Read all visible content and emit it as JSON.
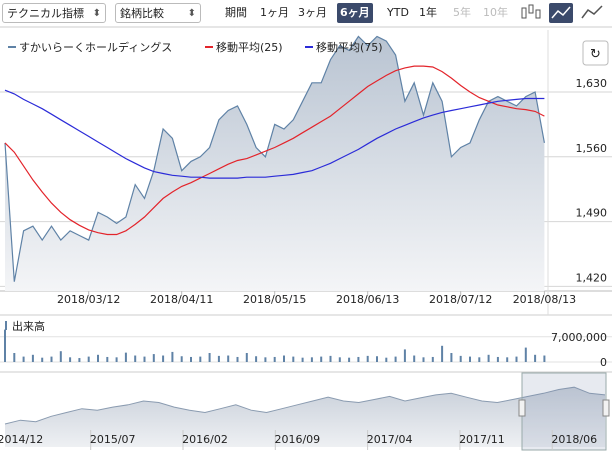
{
  "toolbar": {
    "dropdowns": [
      "テクニカル指標",
      "銘柄比較"
    ],
    "period_label": "期間",
    "periods": [
      "1ヶ月",
      "3ヶ月",
      "6ヶ月",
      "YTD",
      "1年",
      "5年",
      "10年"
    ],
    "selected_period": 2,
    "disabled_periods": [
      5,
      6
    ]
  },
  "chart_data": [
    {
      "type": "line",
      "categories": [
        null,
        null,
        null,
        null,
        null,
        null,
        null,
        null,
        null,
        "2018/03/12",
        null,
        null,
        null,
        null,
        null,
        null,
        null,
        null,
        null,
        "2018/04/11",
        null,
        null,
        null,
        null,
        null,
        null,
        null,
        null,
        null,
        "2018/05/15",
        null,
        null,
        null,
        null,
        null,
        null,
        null,
        null,
        null,
        "2018/06/13",
        null,
        null,
        null,
        null,
        null,
        null,
        null,
        null,
        null,
        "2018/07/12",
        null,
        null,
        null,
        null,
        null,
        null,
        null,
        null,
        "2018/08/13"
      ],
      "series": [
        {
          "name": "すかいらーくホールディングス",
          "color": "#5f82a6",
          "area": true,
          "values": [
            1575,
            1425,
            1480,
            1485,
            1470,
            1485,
            1470,
            1480,
            1475,
            1470,
            1500,
            1495,
            1488,
            1495,
            1530,
            1515,
            1545,
            1590,
            1580,
            1545,
            1555,
            1560,
            1570,
            1600,
            1610,
            1615,
            1595,
            1570,
            1560,
            1595,
            1590,
            1600,
            1620,
            1640,
            1640,
            1665,
            1680,
            1675,
            1690,
            1680,
            1690,
            1685,
            1670,
            1620,
            1640,
            1605,
            1640,
            1620,
            1560,
            1570,
            1575,
            1600,
            1620,
            1625,
            1620,
            1615,
            1625,
            1630,
            1575
          ]
        },
        {
          "name": "移動平均(25)",
          "color": "#e3242b",
          "values": [
            1575,
            1565,
            1550,
            1535,
            1522,
            1510,
            1500,
            1492,
            1486,
            1481,
            1478,
            1476,
            1476,
            1480,
            1487,
            1495,
            1505,
            1515,
            1522,
            1528,
            1532,
            1537,
            1542,
            1547,
            1552,
            1556,
            1558,
            1562,
            1566,
            1570,
            1575,
            1580,
            1586,
            1592,
            1598,
            1604,
            1612,
            1620,
            1628,
            1636,
            1642,
            1648,
            1653,
            1656,
            1658,
            1658,
            1657,
            1652,
            1645,
            1637,
            1630,
            1624,
            1620,
            1616,
            1614,
            1612,
            1611,
            1609,
            1604
          ]
        },
        {
          "name": "移動平均(75)",
          "color": "#2b2bd8",
          "values": [
            1632,
            1628,
            1622,
            1617,
            1612,
            1606,
            1600,
            1594,
            1588,
            1582,
            1576,
            1570,
            1564,
            1558,
            1553,
            1548,
            1544,
            1542,
            1540,
            1539,
            1538,
            1538,
            1537,
            1537,
            1537,
            1537,
            1538,
            1538,
            1538,
            1539,
            1540,
            1541,
            1543,
            1545,
            1549,
            1553,
            1558,
            1563,
            1568,
            1574,
            1580,
            1585,
            1590,
            1594,
            1598,
            1602,
            1605,
            1608,
            1610,
            1612,
            1614,
            1616,
            1618,
            1620,
            1621,
            1622,
            1623,
            1623,
            1623
          ]
        }
      ],
      "ylim": [
        1415,
        1697
      ],
      "yticks": [
        {
          "value": 1630,
          "label": "1,630"
        },
        {
          "value": 1560,
          "label": "1,560"
        },
        {
          "value": 1490,
          "label": "1,490"
        },
        {
          "value": 1420,
          "label": "1,420"
        }
      ],
      "grid": true
    },
    {
      "type": "bar",
      "title": "出来高",
      "color": "#5f82a6",
      "values": [
        9000000,
        2500000,
        1500000,
        2000000,
        1200000,
        1500000,
        3000000,
        1300000,
        1100000,
        1500000,
        2000000,
        1400000,
        1300000,
        2600000,
        1800000,
        1500000,
        2200000,
        1800000,
        2800000,
        1600000,
        1400000,
        1500000,
        2500000,
        1700000,
        1800000,
        1400000,
        2500000,
        1600000,
        1300000,
        1400000,
        1800000,
        1500000,
        1200000,
        1300000,
        1500000,
        1700000,
        1300000,
        1200000,
        1400000,
        1700000,
        1600000,
        1200000,
        1500000,
        3500000,
        1800000,
        1300000,
        1400000,
        4500000,
        2500000,
        1700000,
        1500000,
        1300000,
        2000000,
        1400000,
        1300000,
        1500000,
        4000000,
        2000000,
        1800000
      ],
      "ylim": [
        0,
        10000000
      ],
      "yticks": [
        {
          "value": 7000000,
          "label": "7,000,000"
        },
        0
      ]
    },
    {
      "type": "area",
      "color": "#8a9bb0",
      "categories": [
        null,
        "2014/12",
        null,
        null,
        null,
        null,
        null,
        "2015/07",
        null,
        null,
        null,
        null,
        null,
        "2016/02",
        null,
        null,
        null,
        null,
        null,
        "2016/09",
        null,
        null,
        null,
        null,
        null,
        "2017/04",
        null,
        null,
        null,
        null,
        null,
        "2017/11",
        null,
        null,
        null,
        null,
        null,
        "2018/06",
        null,
        null
      ],
      "values": [
        1200,
        1250,
        1230,
        1300,
        1350,
        1400,
        1380,
        1420,
        1450,
        1500,
        1480,
        1420,
        1380,
        1350,
        1400,
        1450,
        1380,
        1350,
        1400,
        1450,
        1500,
        1550,
        1500,
        1480,
        1520,
        1560,
        1500,
        1540,
        1580,
        1600,
        1550,
        1500,
        1480,
        1520,
        1560,
        1600,
        1650,
        1680,
        1600,
        1580
      ],
      "ylim": [
        900,
        1800
      ]
    }
  ]
}
